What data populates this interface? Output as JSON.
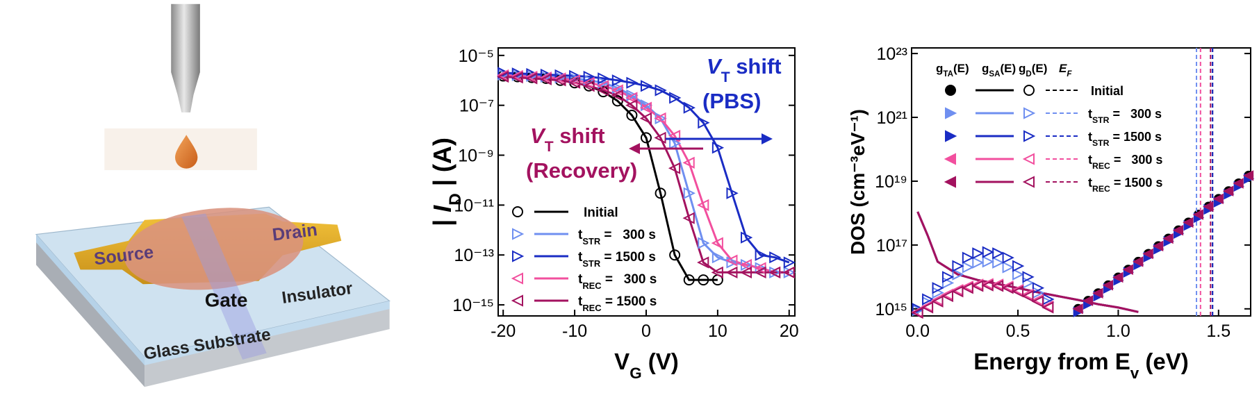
{
  "schematic": {
    "labels": [
      "Source",
      "Drain",
      "Gate",
      "Insulator",
      "Glass Substrate"
    ]
  },
  "chart_data": [
    {
      "type": "line",
      "log_y": true,
      "ylabel": [
        "| ",
        "I",
        "D",
        " | (A)"
      ],
      "xlabel": [
        "V",
        "G",
        " (V)"
      ],
      "x": [
        -20,
        -18,
        -16,
        -14,
        -12,
        -10,
        -8,
        -6,
        -4,
        -2,
        0,
        2,
        4,
        6,
        8,
        10,
        12,
        14,
        16,
        18,
        20
      ],
      "xlim": [
        -20.7,
        20.8
      ],
      "xticks": [
        -20,
        -10,
        0,
        10,
        20
      ],
      "ylim": [
        3.6e-16,
        2e-05
      ],
      "yticks": [
        {
          "value": 1e-15,
          "label": "10⁻¹⁵"
        },
        {
          "value": 1e-13,
          "label": "10⁻¹³"
        },
        {
          "value": 1e-11,
          "label": "10⁻¹¹"
        },
        {
          "value": 1e-09,
          "label": "10⁻⁹"
        },
        {
          "value": 1e-07,
          "label": "10⁻⁷"
        },
        {
          "value": 1e-05,
          "label": "10⁻⁵"
        }
      ],
      "annotations": [
        {
          "text": [
            "V",
            "T",
            " shift"
          ],
          "line2": "(PBS)",
          "color": "#1a2cc4"
        },
        {
          "text": [
            "V",
            "T",
            " shift"
          ],
          "line2": "(Recovery)",
          "color": "#a3125f"
        }
      ],
      "series": [
        {
          "name": [
            "Initial"
          ],
          "color": "#000000",
          "marker": "circle",
          "values": [
            1.5e-06,
            1.4e-06,
            1.3e-06,
            1.2e-06,
            1e-06,
            8e-07,
            6e-07,
            3.5e-07,
            1.5e-07,
            4e-08,
            5e-09,
            3e-11,
            1e-13,
            1e-14,
            1e-14,
            1e-14,
            null,
            null,
            null,
            null,
            null
          ]
        },
        {
          "name": [
            "t",
            "STR",
            " =   300 s"
          ],
          "color": "#6f8ff0",
          "marker": "tri-right",
          "values": [
            1.7e-06,
            1.6e-06,
            1.5e-06,
            1.4e-06,
            1.3e-06,
            1.2e-06,
            1e-06,
            8e-07,
            5e-07,
            2.5e-07,
            1e-07,
            3e-08,
            3e-09,
            3e-11,
            3e-13,
            8e-14,
            5e-14,
            4e-14,
            3e-14,
            2e-14,
            2e-14
          ]
        },
        {
          "name": [
            "t",
            "STR",
            " = 1500 s"
          ],
          "color": "#1a2cc4",
          "marker": "tri-right",
          "values": [
            2e-06,
            1.9e-06,
            1.8e-06,
            1.7e-06,
            1.6e-06,
            1.5e-06,
            1.4e-06,
            1.2e-06,
            1e-06,
            8e-07,
            6e-07,
            4e-07,
            2e-07,
            8e-08,
            2e-08,
            2e-09,
            3e-11,
            5e-13,
            1e-13,
            8e-14,
            5e-14
          ]
        },
        {
          "name": [
            "t",
            "REC",
            " =   300 s"
          ],
          "color": "#f24f9e",
          "marker": "tri-left",
          "values": [
            1.6e-06,
            1.5e-06,
            1.4e-06,
            1.3e-06,
            1.2e-06,
            1e-06,
            8e-07,
            6e-07,
            4e-07,
            2e-07,
            8e-08,
            3e-08,
            6e-09,
            5e-10,
            1e-11,
            3e-13,
            6e-14,
            4e-14,
            3e-14,
            2e-14,
            2e-14
          ]
        },
        {
          "name": [
            "t",
            "REC",
            " = 1500 s"
          ],
          "color": "#a3125f",
          "marker": "tri-left",
          "values": [
            1.4e-06,
            1.3e-06,
            1.2e-06,
            1.1e-06,
            1e-06,
            8e-07,
            6e-07,
            4e-07,
            2.5e-07,
            1e-07,
            3e-08,
            5e-09,
            3e-10,
            3e-12,
            5e-14,
            2e-14,
            2e-14,
            2e-14,
            2e-14,
            2e-14,
            2e-14
          ]
        }
      ]
    },
    {
      "type": "combo",
      "log_y": true,
      "ylabel": [
        "DOS (cm⁻³eV⁻¹)"
      ],
      "xlabel": [
        "Energy from E",
        "v",
        " (eV)"
      ],
      "xlim": [
        -0.03,
        1.66
      ],
      "xticks": [
        {
          "value": 0,
          "label": "0.0"
        },
        0.5,
        {
          "value": 1,
          "label": "1.0"
        },
        1.5
      ],
      "ylim": [
        600000000000000.0,
        1.5e+23
      ],
      "yticks": [
        {
          "value": 1000000000000000.0,
          "label": "10¹⁵"
        },
        {
          "value": 1e+17,
          "label": "10¹⁷"
        },
        {
          "value": 1e+19,
          "label": "10¹⁹"
        },
        {
          "value": 1e+21,
          "label": "10²¹"
        },
        {
          "value": 1e+23,
          "label": "10²³"
        }
      ],
      "legend_header": [
        [
          "g",
          "TA",
          "(E)"
        ],
        [
          "g",
          "SA",
          "(E)"
        ],
        [
          "g",
          "D",
          "(E)"
        ],
        [
          "E",
          "F"
        ]
      ],
      "x_ta": [
        0.8,
        0.85,
        0.9,
        0.95,
        1,
        1.05,
        1.1,
        1.15,
        1.2,
        1.25,
        1.3,
        1.35,
        1.4,
        1.45,
        1.5,
        1.55,
        1.6,
        1.65
      ],
      "x_d": [
        0,
        0.05,
        0.1,
        0.15,
        0.2,
        0.25,
        0.3,
        0.35,
        0.4,
        0.45,
        0.5,
        0.55,
        0.6,
        0.65
      ],
      "x_sa": [
        0,
        0.05,
        0.1,
        0.2,
        0.3,
        0.4,
        0.5,
        0.6,
        0.7,
        0.8,
        0.9,
        1,
        1.1
      ],
      "series": [
        {
          "name": [
            "Initial"
          ],
          "color": "#000000",
          "marker": "circle",
          "EF": 1.47,
          "gTA": [
            1000000000000000.0,
            1800000000000000.0,
            3100000000000000.0,
            5500000000000000.0,
            9700000000000000.0,
            1.7e+16,
            3e+16,
            5.3e+16,
            9.3e+16,
            1.6e+17,
            2.9e+17,
            5.1e+17,
            9e+17,
            1.6e+18,
            2.8e+18,
            4.9e+18,
            8.6e+18,
            1.5e+19
          ],
          "gD": [
            null,
            null,
            null,
            null,
            null,
            null,
            null,
            null,
            null,
            null,
            null,
            null,
            null,
            null
          ],
          "gSA": [
            1.1e+18,
            2e+17,
            3e+16,
            1.2e+16,
            8000000000000000.0,
            6000000000000000.0,
            4500000000000000.0,
            3300000000000000.0,
            2500000000000000.0,
            1900000000000000.0,
            1400000000000000.0,
            1100000000000000.0,
            800000000000000.0
          ]
        },
        {
          "name": [
            "t",
            "STR",
            " =   300 s"
          ],
          "color": "#6f8ff0",
          "marker": "tri-right",
          "EF": 1.39,
          "gTA": [
            800000000000000.0,
            1400000000000000.0,
            2500000000000000.0,
            4400000000000000.0,
            7800000000000000.0,
            1.4e+16,
            2.4e+16,
            4.2e+16,
            7.4e+16,
            1.3e+17,
            2.3e+17,
            4.1e+17,
            7.2e+17,
            1.3e+18,
            2.2e+18,
            3.9e+18,
            6.9e+18,
            1.2e+19
          ],
          "gD": [
            900000000000000.0,
            1600000000000000.0,
            3200000000000000.0,
            6500000000000000.0,
            1.2e+16,
            2e+16,
            2.8e+16,
            3e+16,
            2.8e+16,
            2e+16,
            1.2e+16,
            6500000000000000.0,
            3200000000000000.0,
            1600000000000000.0
          ],
          "gSA": [
            1.1e+18,
            2e+17,
            3e+16,
            1.2e+16,
            8000000000000000.0,
            6000000000000000.0,
            4500000000000000.0,
            3300000000000000.0,
            2500000000000000.0,
            1900000000000000.0,
            1400000000000000.0,
            1100000000000000.0,
            800000000000000.0
          ]
        },
        {
          "name": [
            "t",
            "STR",
            " = 1500 s"
          ],
          "color": "#1a2cc4",
          "marker": "tri-right",
          "EF": 1.47,
          "gTA": [
            800000000000000.0,
            1400000000000000.0,
            2500000000000000.0,
            4400000000000000.0,
            7800000000000000.0,
            1.4e+16,
            2.4e+16,
            4.2e+16,
            7.4e+16,
            1.3e+17,
            2.3e+17,
            4.1e+17,
            7.2e+17,
            1.3e+18,
            2.2e+18,
            3.9e+18,
            6.9e+18,
            1.2e+19
          ],
          "gD": [
            1000000000000000.0,
            2000000000000000.0,
            4500000000000000.0,
            1e+16,
            2.2e+16,
            4e+16,
            5.5e+16,
            6e+16,
            5.5e+16,
            4e+16,
            2.2e+16,
            1e+16,
            4500000000000000.0,
            2000000000000000.0
          ],
          "gSA": [
            1.1e+18,
            2e+17,
            3e+16,
            1.2e+16,
            8000000000000000.0,
            6000000000000000.0,
            4500000000000000.0,
            3300000000000000.0,
            2500000000000000.0,
            1900000000000000.0,
            1400000000000000.0,
            1100000000000000.0,
            800000000000000.0
          ]
        },
        {
          "name": [
            "t",
            "REC",
            " =   300 s"
          ],
          "color": "#f24f9e",
          "marker": "tri-left",
          "EF": 1.41,
          "gTA": [
            1000000000000000.0,
            1800000000000000.0,
            3100000000000000.0,
            5500000000000000.0,
            9700000000000000.0,
            1.7e+16,
            3e+16,
            5.3e+16,
            9.3e+16,
            1.6e+17,
            2.9e+17,
            5.1e+17,
            9e+17,
            1.6e+18,
            2.8e+18,
            4.9e+18,
            8.6e+18,
            1.5e+19
          ],
          "gD": [
            800000000000000.0,
            1200000000000000.0,
            1900000000000000.0,
            2800000000000000.0,
            3900000000000000.0,
            5000000000000000.0,
            5800000000000000.0,
            6000000000000000.0,
            5800000000000000.0,
            5000000000000000.0,
            3900000000000000.0,
            2800000000000000.0,
            1900000000000000.0,
            1200000000000000.0
          ],
          "gSA": [
            1.1e+18,
            2e+17,
            3e+16,
            1.2e+16,
            8000000000000000.0,
            6000000000000000.0,
            4500000000000000.0,
            3300000000000000.0,
            2500000000000000.0,
            1900000000000000.0,
            1400000000000000.0,
            1100000000000000.0,
            800000000000000.0
          ]
        },
        {
          "name": [
            "t",
            "REC",
            " = 1500 s"
          ],
          "color": "#a3125f",
          "marker": "tri-left",
          "EF": 1.46,
          "gTA": [
            1000000000000000.0,
            1800000000000000.0,
            3100000000000000.0,
            5500000000000000.0,
            9700000000000000.0,
            1.7e+16,
            3e+16,
            5.3e+16,
            9.3e+16,
            1.6e+17,
            2.9e+17,
            5.1e+17,
            9e+17,
            1.6e+18,
            2.8e+18,
            4.9e+18,
            8.6e+18,
            1.5e+19
          ],
          "gD": [
            750000000000000.0,
            1100000000000000.0,
            1700000000000000.0,
            2500000000000000.0,
            3500000000000000.0,
            4500000000000000.0,
            5200000000000000.0,
            5400000000000000.0,
            5200000000000000.0,
            4500000000000000.0,
            3500000000000000.0,
            2500000000000000.0,
            1700000000000000.0,
            1100000000000000.0
          ],
          "gSA": [
            1.1e+18,
            2e+17,
            3e+16,
            1.2e+16,
            8000000000000000.0,
            6000000000000000.0,
            4500000000000000.0,
            3300000000000000.0,
            2500000000000000.0,
            1900000000000000.0,
            1400000000000000.0,
            1100000000000000.0,
            800000000000000.0
          ]
        }
      ]
    }
  ]
}
